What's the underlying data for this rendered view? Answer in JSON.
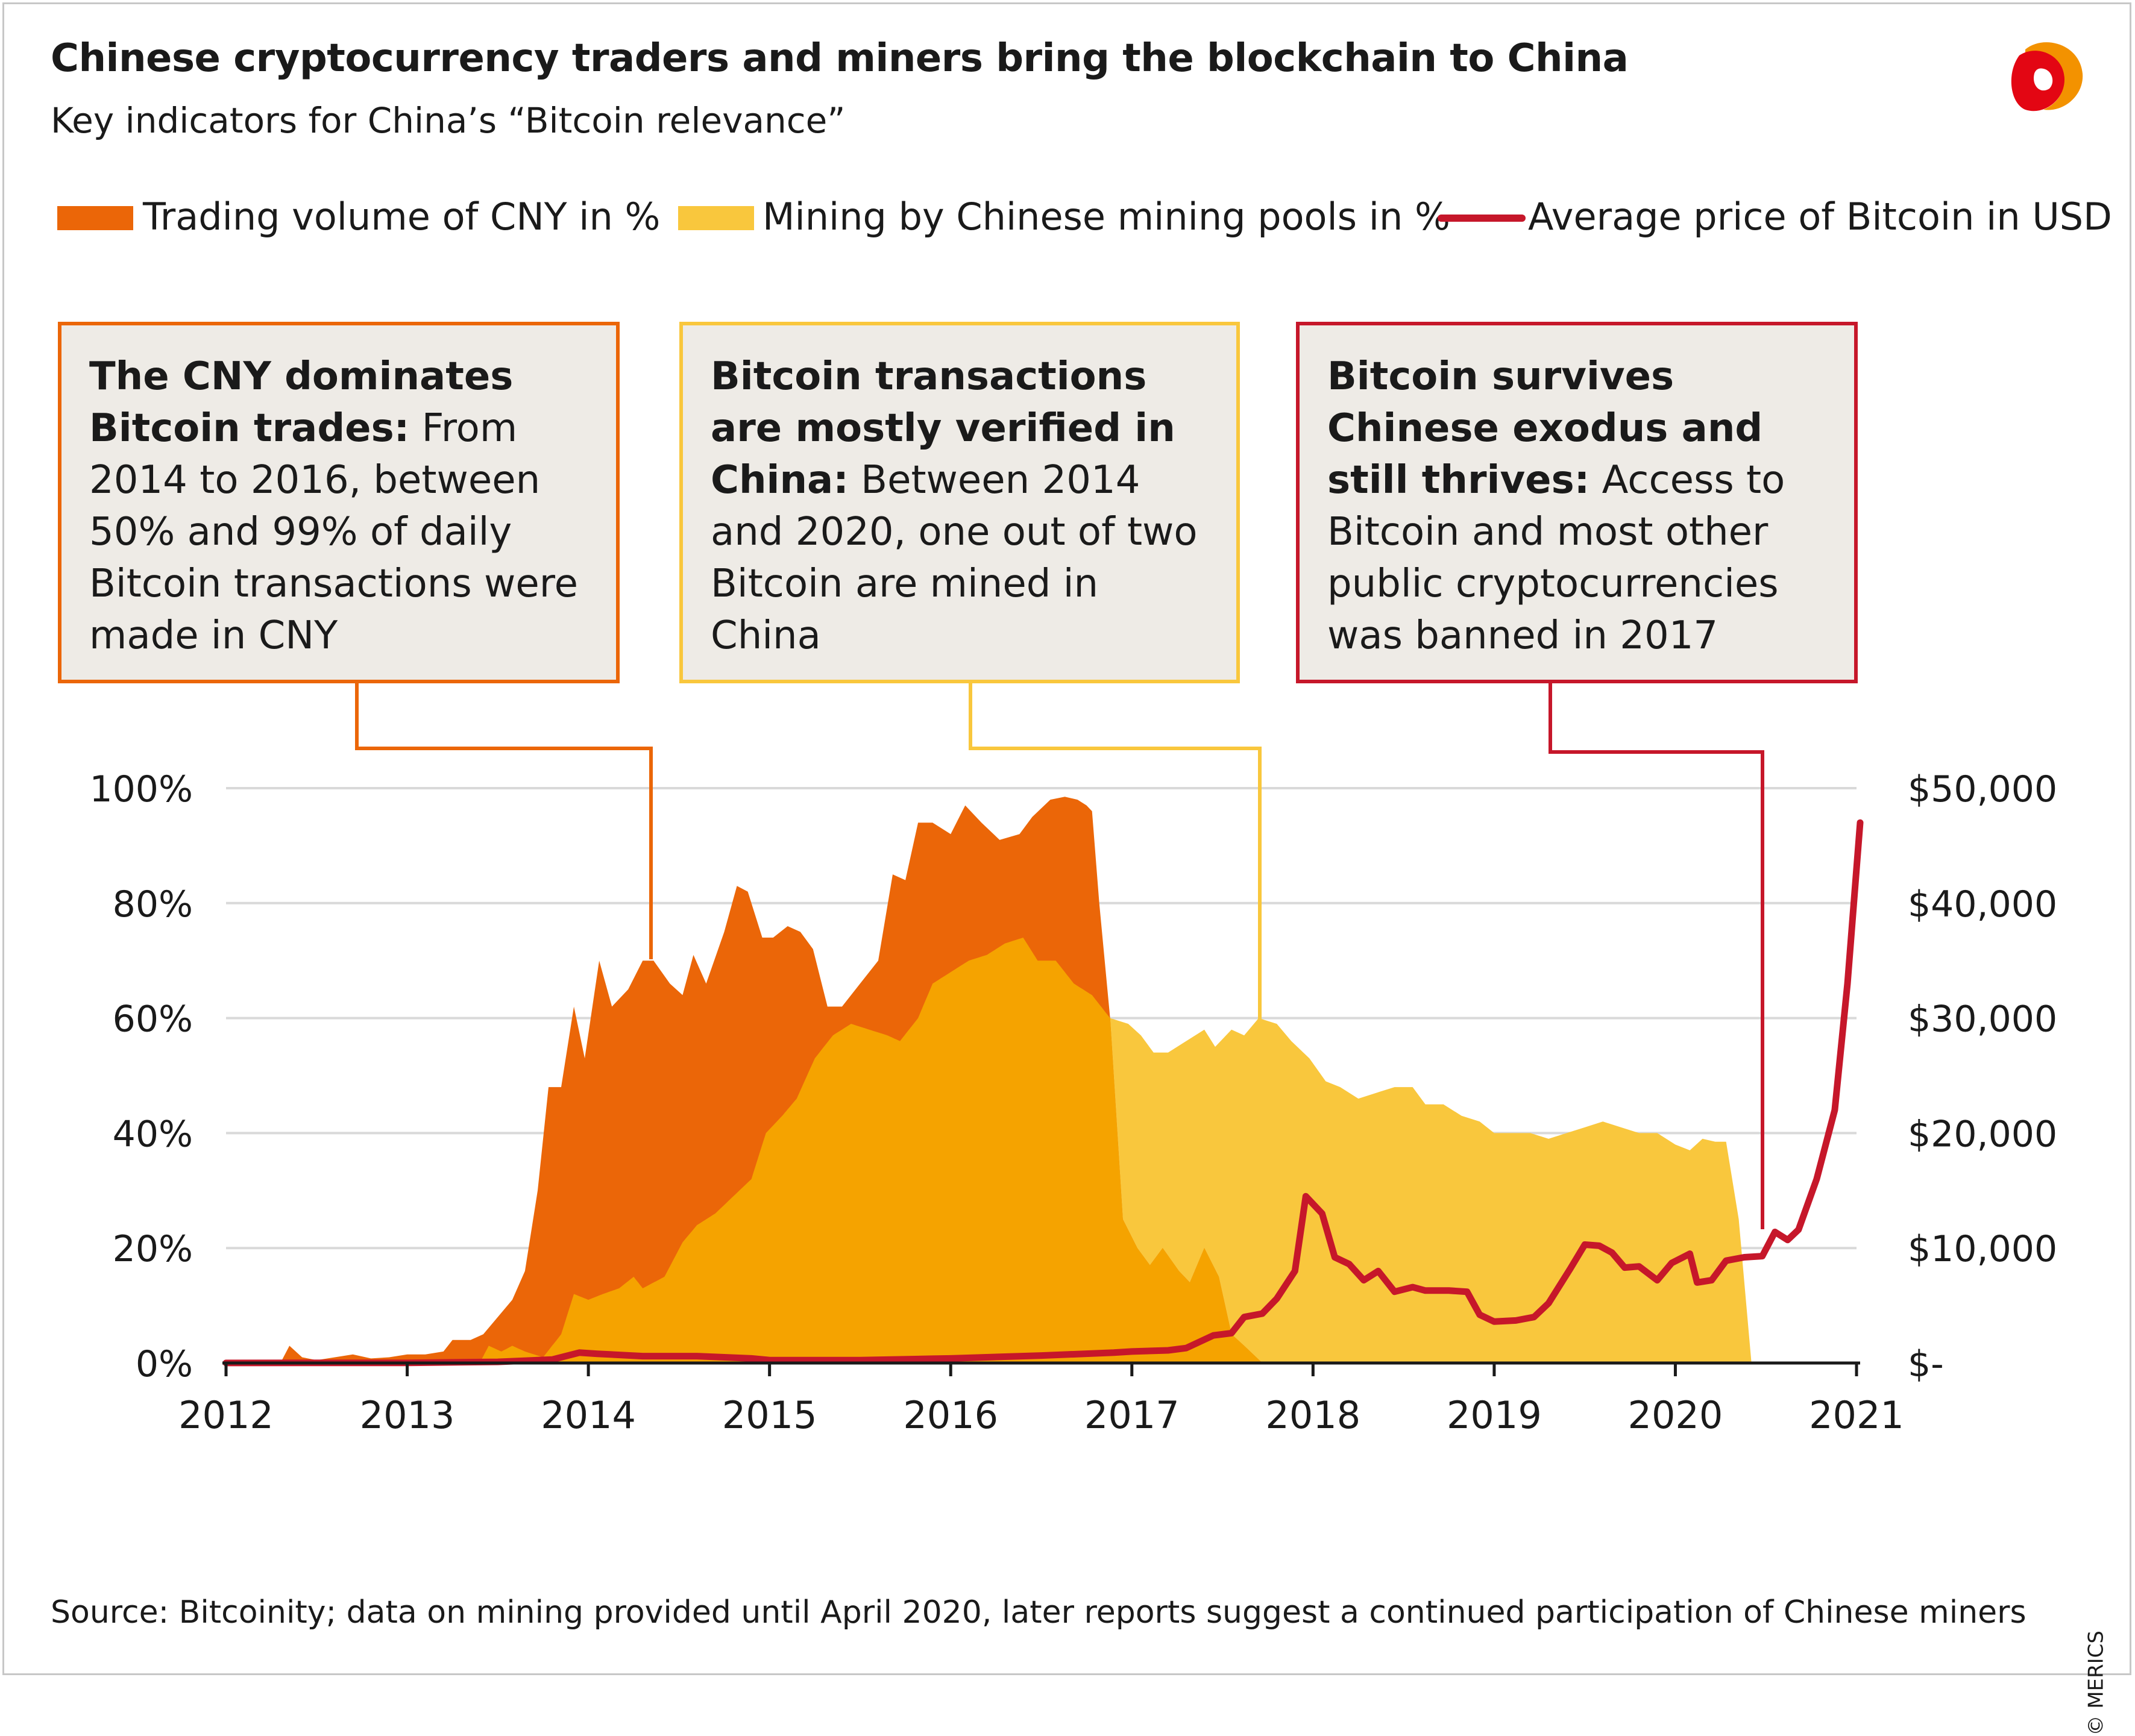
{
  "header": {
    "title": "Chinese cryptocurrency traders and miners bring the blockchain to China",
    "subtitle": "Key indicators for China’s “Bitcoin relevance”"
  },
  "colors": {
    "cny": "#eb6608",
    "mining": "#f9c73d",
    "mining_overlap": "#f5a300",
    "price": "#c6172a",
    "callout_bg": "#eeebe6",
    "grid": "#d9d9d9"
  },
  "legend": {
    "cny_label": "Trading volume of CNY in %",
    "mining_label": "Mining by Chinese mining pools in %",
    "price_label": "Average price of Bitcoin in USD"
  },
  "callouts": {
    "cny": {
      "heading": "The CNY dominates Bitcoin trades:",
      "body": "From 2014 to 2016, between 50% and 99% of daily Bitcoin transactions were made in CNY"
    },
    "mining": {
      "heading": "Bitcoin transactions are mostly verified in China:",
      "body": "Between 2014 and 2020, one out of two Bitcoin are mined in China"
    },
    "price": {
      "heading": "Bitcoin survives Chinese exodus and still thrives:",
      "body": "Access to Bitcoin and most other public cryptocurrencies was banned in 2017"
    }
  },
  "source": "Source: Bitcoinity; data on mining provided until April 2020, later reports suggest a continued participation of Chinese miners",
  "copyright": "© MERICS",
  "chart_data": {
    "type": "area",
    "title": "Chinese cryptocurrency traders and miners bring the blockchain to China",
    "xlim": [
      2012,
      2021.3
    ],
    "ylim_left": [
      0,
      100
    ],
    "ylim_right": [
      0,
      50000
    ],
    "x_ticks": [
      2012,
      2013,
      2014,
      2015,
      2016,
      2017,
      2018,
      2019,
      2020,
      2021
    ],
    "x_tick_labels": [
      "2012",
      "2013",
      "2014",
      "2015",
      "2016",
      "2017",
      "2018",
      "2019",
      "2020",
      "2021"
    ],
    "y_left_ticks": [
      0,
      20,
      40,
      60,
      80,
      100
    ],
    "y_left_labels": [
      "0%",
      "20%",
      "40%",
      "60%",
      "80%",
      "100%"
    ],
    "y_right_ticks": [
      0,
      10000,
      20000,
      30000,
      40000,
      50000
    ],
    "y_right_labels": [
      "$-",
      "$10,000",
      "$20,000",
      "$30,000",
      "$40,000",
      "$50,000"
    ],
    "grid": true,
    "series": [
      {
        "name": "Trading volume of CNY in %",
        "axis": "left",
        "type": "area",
        "points": [
          [
            2012.0,
            0
          ],
          [
            2012.2,
            0.2
          ],
          [
            2012.3,
            0
          ],
          [
            2012.35,
            3
          ],
          [
            2012.42,
            1
          ],
          [
            2012.5,
            0.5
          ],
          [
            2012.6,
            1
          ],
          [
            2012.7,
            1.5
          ],
          [
            2012.8,
            0.8
          ],
          [
            2012.9,
            1
          ],
          [
            2013.0,
            1.5
          ],
          [
            2013.1,
            1.5
          ],
          [
            2013.2,
            2
          ],
          [
            2013.25,
            4
          ],
          [
            2013.35,
            4
          ],
          [
            2013.42,
            5
          ],
          [
            2013.5,
            8
          ],
          [
            2013.58,
            11
          ],
          [
            2013.65,
            16
          ],
          [
            2013.72,
            30
          ],
          [
            2013.78,
            48
          ],
          [
            2013.85,
            48
          ],
          [
            2013.92,
            62
          ],
          [
            2013.98,
            53
          ],
          [
            2014.06,
            70
          ],
          [
            2014.13,
            62
          ],
          [
            2014.22,
            65
          ],
          [
            2014.3,
            70
          ],
          [
            2014.36,
            70
          ],
          [
            2014.45,
            66
          ],
          [
            2014.52,
            64
          ],
          [
            2014.58,
            71
          ],
          [
            2014.65,
            66
          ],
          [
            2014.75,
            75
          ],
          [
            2014.82,
            83
          ],
          [
            2014.88,
            82
          ],
          [
            2014.96,
            74
          ],
          [
            2015.02,
            74
          ],
          [
            2015.1,
            76
          ],
          [
            2015.17,
            75
          ],
          [
            2015.24,
            72
          ],
          [
            2015.32,
            62
          ],
          [
            2015.4,
            62
          ],
          [
            2015.5,
            66
          ],
          [
            2015.6,
            70
          ],
          [
            2015.68,
            85
          ],
          [
            2015.75,
            84
          ],
          [
            2015.82,
            94
          ],
          [
            2015.9,
            94
          ],
          [
            2016.0,
            92
          ],
          [
            2016.08,
            97
          ],
          [
            2016.17,
            94
          ],
          [
            2016.27,
            91
          ],
          [
            2016.38,
            92
          ],
          [
            2016.45,
            95
          ],
          [
            2016.55,
            98
          ],
          [
            2016.63,
            98.5
          ],
          [
            2016.7,
            98
          ],
          [
            2016.75,
            97
          ],
          [
            2016.78,
            96
          ],
          [
            2016.82,
            80
          ],
          [
            2016.88,
            60
          ],
          [
            2016.95,
            25
          ],
          [
            2017.03,
            20
          ],
          [
            2017.1,
            17
          ],
          [
            2017.17,
            20
          ],
          [
            2017.26,
            16
          ],
          [
            2017.32,
            14
          ],
          [
            2017.4,
            20
          ],
          [
            2017.48,
            15
          ],
          [
            2017.55,
            5
          ],
          [
            2017.62,
            3
          ],
          [
            2017.72,
            0
          ]
        ]
      },
      {
        "name": "Mining by Chinese mining pools in %",
        "axis": "left",
        "type": "area",
        "points": [
          [
            2013.4,
            0
          ],
          [
            2013.45,
            3
          ],
          [
            2013.52,
            2
          ],
          [
            2013.58,
            3
          ],
          [
            2013.65,
            2
          ],
          [
            2013.75,
            1
          ],
          [
            2013.85,
            5
          ],
          [
            2013.92,
            12
          ],
          [
            2014.0,
            11
          ],
          [
            2014.08,
            12
          ],
          [
            2014.17,
            13
          ],
          [
            2014.25,
            15
          ],
          [
            2014.3,
            13
          ],
          [
            2014.42,
            15
          ],
          [
            2014.52,
            21
          ],
          [
            2014.6,
            24
          ],
          [
            2014.7,
            26
          ],
          [
            2014.8,
            29
          ],
          [
            2014.9,
            32
          ],
          [
            2014.98,
            40
          ],
          [
            2015.07,
            43
          ],
          [
            2015.15,
            46
          ],
          [
            2015.25,
            53
          ],
          [
            2015.35,
            57
          ],
          [
            2015.45,
            59
          ],
          [
            2015.55,
            58
          ],
          [
            2015.65,
            57
          ],
          [
            2015.72,
            56
          ],
          [
            2015.82,
            60
          ],
          [
            2015.9,
            66
          ],
          [
            2016.0,
            68
          ],
          [
            2016.1,
            70
          ],
          [
            2016.2,
            71
          ],
          [
            2016.3,
            73
          ],
          [
            2016.4,
            74
          ],
          [
            2016.48,
            70
          ],
          [
            2016.58,
            70
          ],
          [
            2016.68,
            66
          ],
          [
            2016.78,
            64
          ],
          [
            2016.88,
            60
          ],
          [
            2016.98,
            59
          ],
          [
            2017.05,
            57
          ],
          [
            2017.12,
            54
          ],
          [
            2017.2,
            54
          ],
          [
            2017.3,
            56
          ],
          [
            2017.4,
            58
          ],
          [
            2017.46,
            55
          ],
          [
            2017.55,
            58
          ],
          [
            2017.62,
            57
          ],
          [
            2017.7,
            60
          ],
          [
            2017.8,
            59
          ],
          [
            2017.88,
            56
          ],
          [
            2017.98,
            53
          ],
          [
            2018.07,
            49
          ],
          [
            2018.15,
            48
          ],
          [
            2018.25,
            46
          ],
          [
            2018.35,
            47
          ],
          [
            2018.45,
            48
          ],
          [
            2018.55,
            48
          ],
          [
            2018.62,
            45
          ],
          [
            2018.72,
            45
          ],
          [
            2018.82,
            43
          ],
          [
            2018.92,
            42
          ],
          [
            2019.0,
            40
          ],
          [
            2019.1,
            40
          ],
          [
            2019.2,
            40
          ],
          [
            2019.3,
            39
          ],
          [
            2019.4,
            40
          ],
          [
            2019.5,
            41
          ],
          [
            2019.6,
            42
          ],
          [
            2019.7,
            41
          ],
          [
            2019.8,
            40
          ],
          [
            2019.9,
            40
          ],
          [
            2020.0,
            38
          ],
          [
            2020.08,
            37
          ],
          [
            2020.15,
            39
          ],
          [
            2020.22,
            38.5
          ],
          [
            2020.28,
            38.5
          ],
          [
            2020.35,
            25
          ],
          [
            2020.42,
            0
          ]
        ]
      },
      {
        "name": "Average price of Bitcoin in USD",
        "axis": "right",
        "type": "line",
        "points": [
          [
            2012.0,
            5
          ],
          [
            2012.5,
            8
          ],
          [
            2013.0,
            15
          ],
          [
            2013.5,
            100
          ],
          [
            2013.8,
            300
          ],
          [
            2013.95,
            900
          ],
          [
            2014.05,
            800
          ],
          [
            2014.3,
            600
          ],
          [
            2014.6,
            600
          ],
          [
            2014.9,
            400
          ],
          [
            2015.0,
            250
          ],
          [
            2015.5,
            250
          ],
          [
            2015.9,
            370
          ],
          [
            2016.0,
            400
          ],
          [
            2016.5,
            650
          ],
          [
            2016.9,
            900
          ],
          [
            2017.0,
            1000
          ],
          [
            2017.2,
            1100
          ],
          [
            2017.3,
            1300
          ],
          [
            2017.45,
            2400
          ],
          [
            2017.55,
            2600
          ],
          [
            2017.62,
            4000
          ],
          [
            2017.72,
            4300
          ],
          [
            2017.8,
            5600
          ],
          [
            2017.9,
            8000
          ],
          [
            2017.96,
            14500
          ],
          [
            2018.05,
            13000
          ],
          [
            2018.12,
            9200
          ],
          [
            2018.2,
            8600
          ],
          [
            2018.28,
            7200
          ],
          [
            2018.36,
            8000
          ],
          [
            2018.45,
            6200
          ],
          [
            2018.55,
            6600
          ],
          [
            2018.62,
            6300
          ],
          [
            2018.75,
            6300
          ],
          [
            2018.85,
            6200
          ],
          [
            2018.92,
            4200
          ],
          [
            2019.0,
            3600
          ],
          [
            2019.12,
            3700
          ],
          [
            2019.22,
            4000
          ],
          [
            2019.3,
            5200
          ],
          [
            2019.42,
            8200
          ],
          [
            2019.5,
            10300
          ],
          [
            2019.58,
            10200
          ],
          [
            2019.65,
            9600
          ],
          [
            2019.72,
            8300
          ],
          [
            2019.8,
            8400
          ],
          [
            2019.9,
            7200
          ],
          [
            2019.98,
            8700
          ],
          [
            2020.08,
            9500
          ],
          [
            2020.12,
            7000
          ],
          [
            2020.2,
            7200
          ],
          [
            2020.28,
            8900
          ],
          [
            2020.38,
            9200
          ],
          [
            2020.48,
            9300
          ],
          [
            2020.55,
            11400
          ],
          [
            2020.62,
            10700
          ],
          [
            2020.68,
            11600
          ],
          [
            2020.78,
            16000
          ],
          [
            2020.88,
            22000
          ],
          [
            2020.95,
            33000
          ],
          [
            2021.02,
            47000
          ]
        ]
      }
    ]
  }
}
